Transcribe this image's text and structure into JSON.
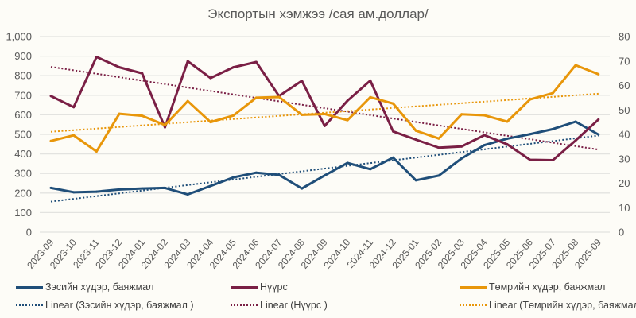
{
  "chart_data": {
    "type": "line",
    "title": "Экспортын хэмжээ /сая ам.доллар/",
    "categories": [
      "2023-09",
      "2023-10",
      "2023-11",
      "2023-12",
      "2024-01",
      "2024-02",
      "2024-03",
      "2024-04",
      "2024-05",
      "2024-06",
      "2024-07",
      "2024-08",
      "2024-09",
      "2024-10",
      "2024-11",
      "2024-12",
      "2025-01",
      "2025-02",
      "2025-03",
      "2025-04",
      "2025-05",
      "2025-06",
      "2025-07",
      "2025-08",
      "2025-09"
    ],
    "y_left": {
      "ylim": [
        0,
        1000
      ],
      "ticks": [
        "0",
        "100",
        "200",
        "300",
        "400",
        "500",
        "600",
        "700",
        "800",
        "900",
        "1,000"
      ]
    },
    "y_right": {
      "ylim": [
        0,
        80
      ],
      "ticks": [
        "0",
        "10",
        "20",
        "30",
        "40",
        "50",
        "60",
        "70",
        "80"
      ]
    },
    "grid": true,
    "legend_position": "bottom",
    "series": [
      {
        "name": "Зэсийн хүдэр, баяжмал",
        "axis": "left",
        "color": "#1f4e79",
        "values": [
          226,
          204,
          207,
          218,
          223,
          226,
          193,
          236,
          280,
          304,
          293,
          223,
          290,
          354,
          322,
          381,
          265,
          289,
          377,
          445,
          478,
          501,
          527,
          565,
          499
        ]
      },
      {
        "name": "Нүүрс",
        "axis": "left",
        "color": "#7a1f45",
        "values": [
          696,
          639,
          896,
          843,
          812,
          536,
          874,
          788,
          843,
          870,
          696,
          774,
          543,
          672,
          775,
          515,
          473,
          432,
          438,
          496,
          449,
          370,
          368,
          469,
          576
        ]
      },
      {
        "name": "Төмрийн хүдэр, баяжмал",
        "axis": "right",
        "color": "#e8960a",
        "values": [
          37.3,
          39.6,
          33.0,
          48.4,
          47.6,
          43.8,
          53.6,
          45.0,
          47.7,
          55.0,
          55.3,
          48.0,
          48.3,
          45.8,
          55.2,
          52.6,
          41.5,
          38.3,
          48.2,
          47.8,
          45.2,
          54.3,
          56.9,
          68.3,
          64.6
        ]
      }
    ],
    "trendlines": [
      {
        "name": "Linear (Зэсийн хүдэр, баяжмал )",
        "of": 0
      },
      {
        "name": "Linear (Нүүрс )",
        "of": 1
      },
      {
        "name": "Linear (Төмрийн хүдэр, баяжмал )",
        "of": 2
      }
    ]
  }
}
